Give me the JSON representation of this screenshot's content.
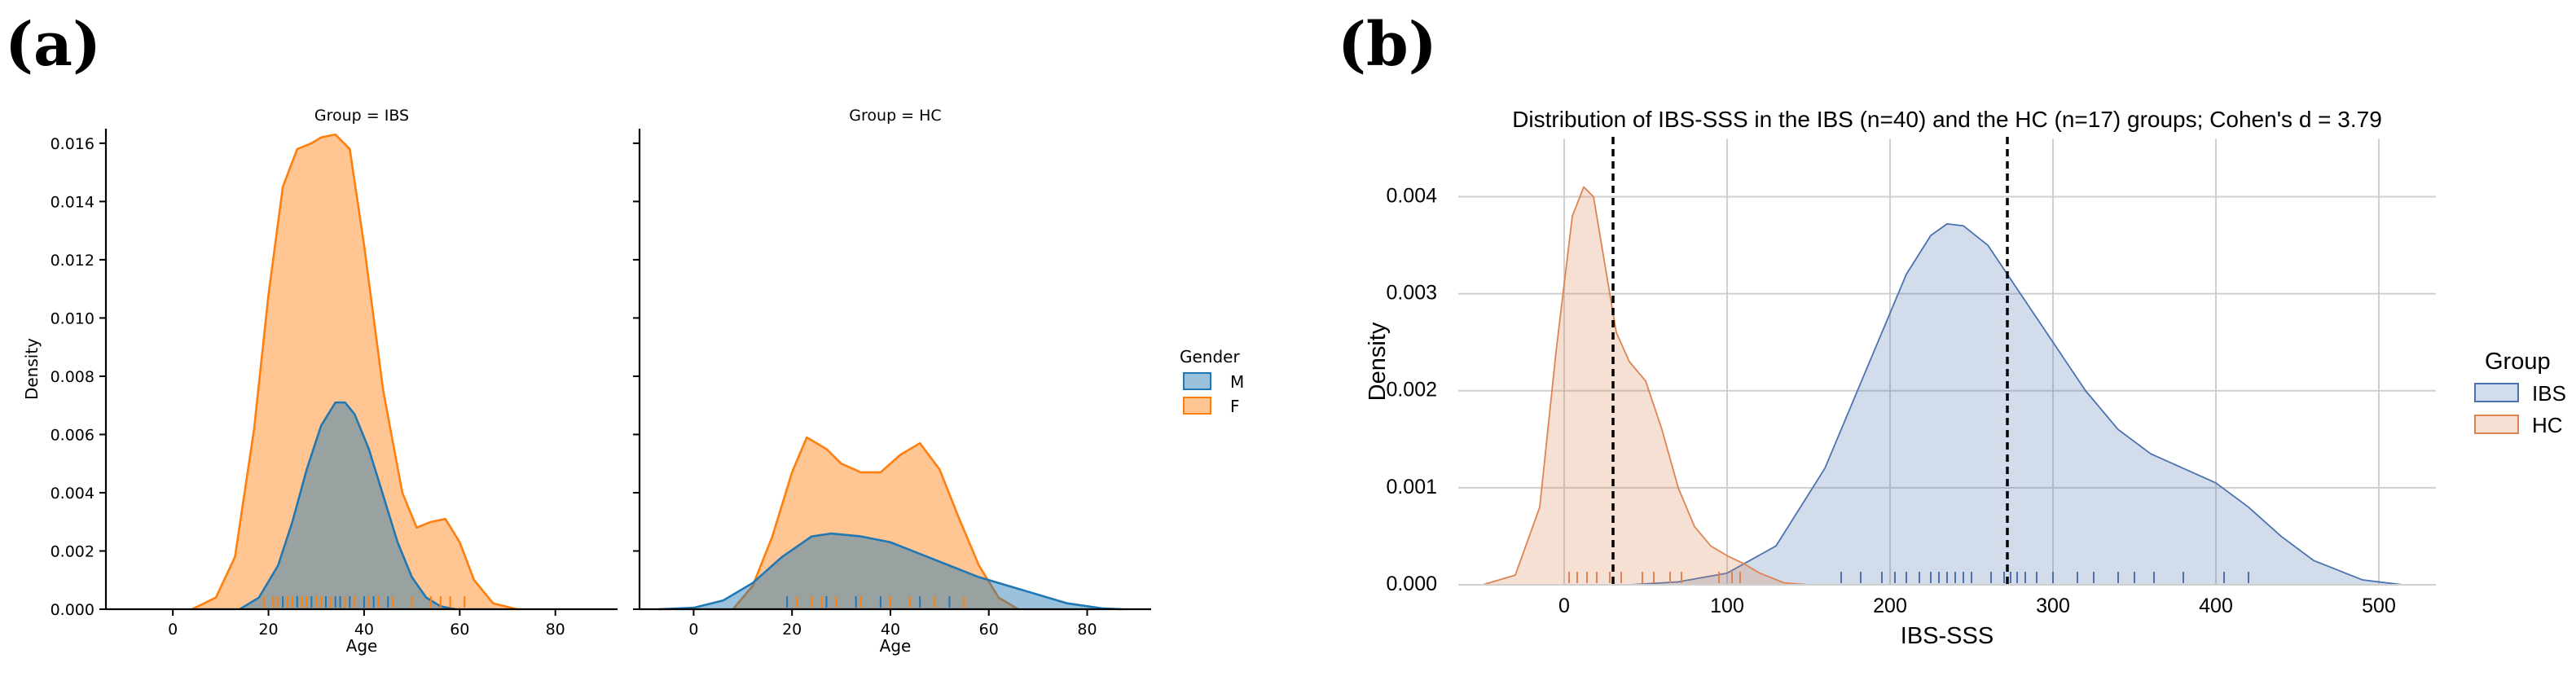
{
  "panel_labels": {
    "a": "(a)",
    "b": "(b)"
  },
  "chart_data": [
    {
      "id": "a_ibs",
      "type": "area",
      "title": "Group = IBS",
      "xlabel": "Age",
      "ylabel": "Density",
      "xlim": [
        -14,
        93
      ],
      "ylim": [
        0,
        0.0165
      ],
      "xticks": [
        "0",
        "20",
        "40",
        "60",
        "80"
      ],
      "yticks": [
        "0.000",
        "0.002",
        "0.004",
        "0.006",
        "0.008",
        "0.010",
        "0.012",
        "0.014",
        "0.016"
      ],
      "series": [
        {
          "name": "F",
          "color": "#ff7f0e",
          "x": [
            4,
            9,
            13,
            17,
            20,
            23,
            26,
            29,
            31,
            34,
            37,
            40,
            44,
            48,
            51,
            54,
            57,
            60,
            63,
            67,
            72
          ],
          "y": [
            0.0,
            0.0004,
            0.0018,
            0.0062,
            0.0108,
            0.0145,
            0.0158,
            0.016,
            0.0162,
            0.0163,
            0.0158,
            0.0125,
            0.0075,
            0.004,
            0.0028,
            0.003,
            0.0031,
            0.0023,
            0.001,
            0.0002,
            0.0
          ]
        },
        {
          "name": "M",
          "color": "#1f77b4",
          "x": [
            14,
            18,
            22,
            25,
            28,
            31,
            34,
            36,
            38,
            41,
            44,
            47,
            50,
            53,
            56,
            59
          ],
          "y": [
            0.0,
            0.0004,
            0.0015,
            0.003,
            0.0048,
            0.0063,
            0.0071,
            0.0071,
            0.0067,
            0.0055,
            0.0039,
            0.0023,
            0.0011,
            0.0004,
            0.0001,
            0.0
          ]
        }
      ],
      "rugs": [
        {
          "color": "#ff7f0e",
          "x": [
            19,
            21,
            22,
            24,
            25,
            26,
            27,
            28,
            29,
            30,
            31,
            33,
            36,
            38,
            41,
            43,
            46,
            50,
            54,
            56,
            58,
            61
          ]
        },
        {
          "color": "#1f77b4",
          "x": [
            23,
            26,
            29,
            32,
            34,
            35,
            37,
            40,
            42,
            45
          ]
        }
      ]
    },
    {
      "id": "a_hc",
      "type": "area",
      "title": "Group = HC",
      "xlabel": "Age",
      "ylabel": "",
      "xlim": [
        -11,
        93
      ],
      "ylim": [
        0,
        0.0165
      ],
      "xticks": [
        "0",
        "20",
        "40",
        "60",
        "80"
      ],
      "yticks": [],
      "series": [
        {
          "name": "F",
          "color": "#ff7f0e",
          "x": [
            8,
            12,
            16,
            20,
            23,
            27,
            30,
            34,
            38,
            42,
            46,
            50,
            54,
            58,
            62,
            66
          ],
          "y": [
            0.0,
            0.0008,
            0.0025,
            0.0047,
            0.0059,
            0.0055,
            0.005,
            0.0047,
            0.0047,
            0.0053,
            0.0057,
            0.0048,
            0.0031,
            0.0015,
            0.0004,
            0.0
          ],
          "fill_to": "M"
        },
        {
          "name": "M",
          "color": "#1f77b4",
          "x": [
            -7,
            0,
            6,
            12,
            18,
            24,
            28,
            34,
            40,
            46,
            52,
            58,
            64,
            70,
            76,
            83,
            87
          ],
          "y": [
            0.0,
            5e-05,
            0.0003,
            0.0009,
            0.0018,
            0.0025,
            0.0026,
            0.0025,
            0.0023,
            0.0019,
            0.0015,
            0.0011,
            0.0008,
            0.0005,
            0.0002,
            3e-05,
            0.0
          ]
        }
      ],
      "rugs": [
        {
          "color": "#ff7f0e",
          "x": [
            21,
            24,
            26,
            29,
            34,
            40,
            44,
            49,
            55
          ]
        },
        {
          "color": "#1f77b4",
          "x": [
            19,
            27,
            33,
            38,
            46,
            52
          ]
        }
      ]
    },
    {
      "id": "b",
      "type": "area",
      "title": "Distribution of IBS-SSS in the IBS (n=40) and the HC (n=17) groups; Cohen's d = 3.79",
      "xlabel": "IBS-SSS",
      "ylabel": "Density",
      "xlim": [
        -65,
        535
      ],
      "ylim": [
        0,
        0.0046
      ],
      "grid": true,
      "xticks": [
        "0",
        "100",
        "200",
        "300",
        "400",
        "500"
      ],
      "yticks": [
        "0.000",
        "0.001",
        "0.002",
        "0.003",
        "0.004"
      ],
      "vlines": [
        30,
        272
      ],
      "series": [
        {
          "name": "IBS",
          "color": "#4c72b0",
          "x": [
            40,
            70,
            100,
            130,
            160,
            190,
            210,
            225,
            235,
            245,
            260,
            280,
            300,
            320,
            340,
            360,
            380,
            400,
            420,
            440,
            460,
            490,
            515
          ],
          "y": [
            0.0,
            3e-05,
            0.00012,
            0.0004,
            0.0012,
            0.0024,
            0.0032,
            0.0036,
            0.00372,
            0.0037,
            0.0035,
            0.003,
            0.0025,
            0.002,
            0.0016,
            0.00135,
            0.0012,
            0.00105,
            0.0008,
            0.0005,
            0.00025,
            5e-05,
            0.0
          ]
        },
        {
          "name": "HC",
          "color": "#dd8452",
          "x": [
            -50,
            -30,
            -15,
            -5,
            5,
            12,
            18,
            25,
            32,
            40,
            50,
            60,
            70,
            80,
            90,
            100,
            110,
            120,
            135,
            150
          ],
          "y": [
            0.0,
            0.0001,
            0.0008,
            0.0024,
            0.0038,
            0.0041,
            0.004,
            0.0033,
            0.0026,
            0.0023,
            0.0021,
            0.0016,
            0.001,
            0.0006,
            0.0004,
            0.0003,
            0.00022,
            0.00012,
            2e-05,
            0.0
          ]
        }
      ],
      "rugs": [
        {
          "color": "#4c72b0",
          "x": [
            170,
            182,
            195,
            203,
            210,
            218,
            225,
            230,
            235,
            240,
            245,
            250,
            262,
            270,
            274,
            278,
            283,
            290,
            300,
            315,
            325,
            340,
            350,
            362,
            380,
            405,
            420
          ]
        },
        {
          "color": "#dd8452",
          "x": [
            3,
            8,
            14,
            20,
            28,
            35,
            48,
            55,
            65,
            72,
            95,
            103,
            108
          ]
        }
      ]
    }
  ],
  "legend_a": {
    "title": "Gender",
    "items": [
      {
        "label": "M",
        "color": "#1f77b4"
      },
      {
        "label": "F",
        "color": "#ff7f0e"
      }
    ]
  },
  "legend_b": {
    "title": "Group",
    "items": [
      {
        "label": "IBS",
        "color": "#4c72b0"
      },
      {
        "label": "HC",
        "color": "#dd8452"
      }
    ]
  }
}
